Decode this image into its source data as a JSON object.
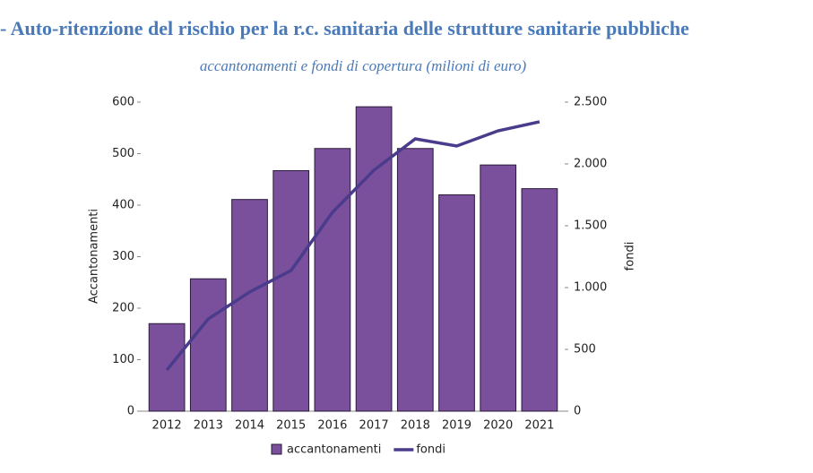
{
  "chart_data": {
    "type": "bar-line",
    "title": "- Auto-ritenzione del rischio per la r.c. sanitaria delle strutture sanitarie pubbliche",
    "subtitle": "accantonamenti e fondi di copertura (milioni di euro)",
    "y_label": "Accantonamenti",
    "y2_label": "fondi",
    "categories": [
      "2012",
      "2013",
      "2014",
      "2015",
      "2016",
      "2017",
      "2018",
      "2019",
      "2020",
      "2021"
    ],
    "series": [
      {
        "name": "accantonamenti",
        "type": "bar",
        "color": "#7a4f9c",
        "values": [
          170,
          257,
          411,
          467,
          510,
          591,
          510,
          420,
          478,
          432
        ]
      },
      {
        "name": "fondi",
        "type": "line",
        "axis": "y2",
        "color": "#4a3b8c",
        "values": [
          333,
          746,
          964,
          1138,
          1609,
          1949,
          2203,
          2145,
          2268,
          2341
        ]
      }
    ],
    "ylim": [
      0,
      600
    ],
    "yticks": [
      0,
      100,
      200,
      300,
      400,
      500,
      600
    ],
    "y2lim": [
      0,
      2500
    ],
    "y2ticks": [
      0,
      500,
      {
        "value": 1000,
        "label": "1.000"
      },
      {
        "value": 1500,
        "label": "1.500"
      },
      {
        "value": 2000,
        "label": "2.000"
      },
      {
        "value": 2500,
        "label": "2.500"
      }
    ],
    "legend": "bottom"
  }
}
